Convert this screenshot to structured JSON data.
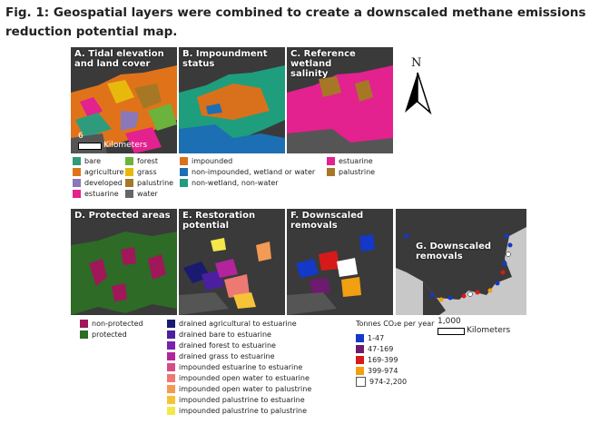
{
  "figure_title": "Fig. 1: Geospatial layers were combined to create a downscaled methane emissions reduction potential map.",
  "panels": {
    "a": "A. Tidal elevation\nand land cover",
    "b": "B. Impoundment\nstatus",
    "c": "C. Reference wetland\nsalinity",
    "d": "D. Protected areas",
    "e": "E. Restoration\npotential",
    "f": "F. Downscaled\nremovals",
    "g": "G. Downscaled\nremovals"
  },
  "scale_small": {
    "value": "6",
    "unit": "Kilometers"
  },
  "scale_large": {
    "value": "1,000",
    "unit": "Kilometers"
  },
  "north_label": "N",
  "legend_landcover": [
    {
      "label": "bare",
      "color": "#2e9c7c"
    },
    {
      "label": "forest",
      "color": "#6bb33d"
    },
    {
      "label": "agriculture",
      "color": "#e0731a"
    },
    {
      "label": "grass",
      "color": "#e8b90d"
    },
    {
      "label": "developed",
      "color": "#8a78b8"
    },
    {
      "label": "palustrine",
      "color": "#a67825"
    },
    {
      "label": "estuarine",
      "color": "#e3218f"
    },
    {
      "label": "water",
      "color": "#666666"
    }
  ],
  "legend_impoundment": [
    {
      "label": "impounded",
      "color": "#d9711c"
    },
    {
      "label": "non-impounded, wetland or water",
      "color": "#1c6fb3"
    },
    {
      "label": "non-wetland, non-water",
      "color": "#1e9e7c"
    }
  ],
  "legend_salinity": [
    {
      "label": "estuarine",
      "color": "#e3218f"
    },
    {
      "label": "palustrine",
      "color": "#a67825"
    }
  ],
  "legend_protected": [
    {
      "label": "non-protected",
      "color": "#a0185a"
    },
    {
      "label": "protected",
      "color": "#2d6b26"
    }
  ],
  "legend_restoration": [
    {
      "label": "drained agricultural to estuarine",
      "color": "#1a1a70"
    },
    {
      "label": "drained bare to estuarine",
      "color": "#4b1fa0"
    },
    {
      "label": "drained forest to estuarine",
      "color": "#7a1fb0"
    },
    {
      "label": "drained grass to estuarine",
      "color": "#b3249c"
    },
    {
      "label": "impounded estuarine to estuarine",
      "color": "#d64d86"
    },
    {
      "label": "impounded open water to estuarine",
      "color": "#ec7a73"
    },
    {
      "label": "impounded open water to palustrine",
      "color": "#f39a55"
    },
    {
      "label": "impounded palustrine to estuarine",
      "color": "#f6c338"
    },
    {
      "label": "impounded palustrine to palustrine",
      "color": "#f4e84a"
    }
  ],
  "legend_removals_title": "Tonnes CO₂e per year",
  "legend_removals": [
    {
      "label": "1-47",
      "color": "#1438c8"
    },
    {
      "label": "47-169",
      "color": "#6e1a6e"
    },
    {
      "label": "169-399",
      "color": "#d61a1a"
    },
    {
      "label": "399-974",
      "color": "#f0a010"
    },
    {
      "label": "974-2,200",
      "color": "#ffffff"
    }
  ]
}
